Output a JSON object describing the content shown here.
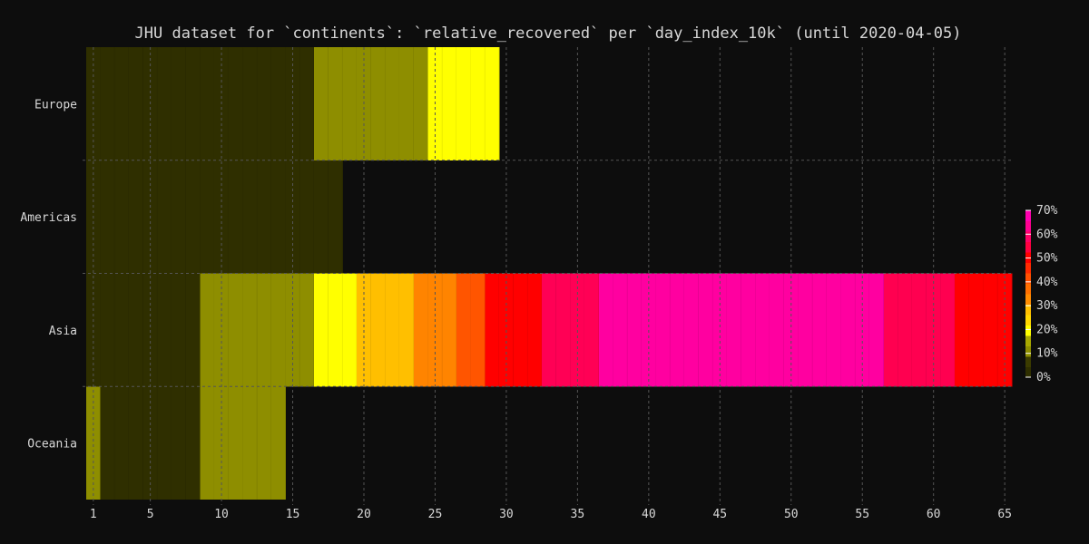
{
  "chart_data": {
    "type": "heatmap",
    "title": "JHU dataset for `continents`: `relative_recovered` per `day_index_10k` (until 2020-04-05)",
    "xlabel": "",
    "ylabel": "",
    "x_ticks": [
      1,
      5,
      10,
      15,
      20,
      25,
      30,
      35,
      40,
      45,
      50,
      55,
      60,
      65
    ],
    "xlim": [
      0.5,
      65.5
    ],
    "rows": [
      "Europe",
      "Americas",
      "Asia",
      "Oceania"
    ],
    "grid": true,
    "colorbar": {
      "label_ticks": [
        "0%",
        "10%",
        "20%",
        "30%",
        "40%",
        "50%",
        "60%",
        "70%"
      ],
      "steps": [
        "#2f2f00",
        "#3c3c00",
        "#8e8e00",
        "#a8a800",
        "#ffff00",
        "#ffd700",
        "#ffbf00",
        "#ff8c00",
        "#ff7000",
        "#ff5000",
        "#ff2a00",
        "#ff0000",
        "#ff0040",
        "#ff0066",
        "#ff0090",
        "#ff00b0"
      ]
    },
    "series": [
      {
        "name": "Europe",
        "segments": [
          {
            "from": 1,
            "to": 16,
            "value": 0.02,
            "color": "#2f2f00"
          },
          {
            "from": 17,
            "to": 24,
            "value": 0.11,
            "color": "#8e8e00"
          },
          {
            "from": 25,
            "to": 29,
            "value": 0.18,
            "color": "#ffff00"
          }
        ]
      },
      {
        "name": "Americas",
        "segments": [
          {
            "from": 1,
            "to": 18,
            "value": 0.02,
            "color": "#2f2f00"
          }
        ]
      },
      {
        "name": "Asia",
        "segments": [
          {
            "from": 1,
            "to": 8,
            "value": 0.02,
            "color": "#2f2f00"
          },
          {
            "from": 9,
            "to": 16,
            "value": 0.11,
            "color": "#8e8e00"
          },
          {
            "from": 17,
            "to": 19,
            "value": 0.18,
            "color": "#ffff00"
          },
          {
            "from": 20,
            "to": 23,
            "value": 0.25,
            "color": "#ffbf00"
          },
          {
            "from": 24,
            "to": 26,
            "value": 0.33,
            "color": "#ff8400"
          },
          {
            "from": 27,
            "to": 28,
            "value": 0.4,
            "color": "#ff5500"
          },
          {
            "from": 29,
            "to": 32,
            "value": 0.47,
            "color": "#ff0000"
          },
          {
            "from": 33,
            "to": 36,
            "value": 0.55,
            "color": "#ff0055"
          },
          {
            "from": 37,
            "to": 56,
            "value": 0.68,
            "color": "#ff00a0"
          },
          {
            "from": 57,
            "to": 61,
            "value": 0.56,
            "color": "#ff0050"
          },
          {
            "from": 62,
            "to": 65,
            "value": 0.5,
            "color": "#ff0000"
          }
        ]
      },
      {
        "name": "Oceania",
        "segments": [
          {
            "from": 1,
            "to": 1,
            "value": 0.11,
            "color": "#8e8e00"
          },
          {
            "from": 2,
            "to": 8,
            "value": 0.02,
            "color": "#2f2f00"
          },
          {
            "from": 9,
            "to": 14,
            "value": 0.11,
            "color": "#8e8e00"
          }
        ]
      }
    ]
  }
}
